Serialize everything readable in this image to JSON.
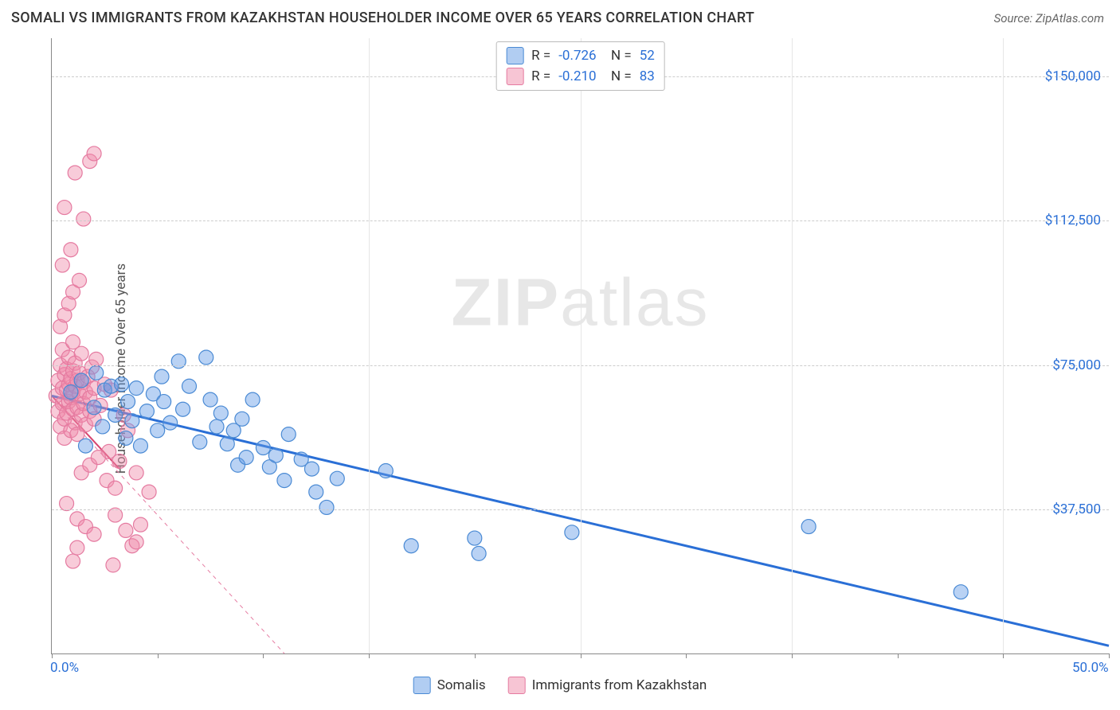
{
  "header": {
    "title": "SOMALI VS IMMIGRANTS FROM KAZAKHSTAN HOUSEHOLDER INCOME OVER 65 YEARS CORRELATION CHART",
    "source": "Source: ZipAtlas.com"
  },
  "chart": {
    "type": "scatter",
    "y_axis_label": "Householder Income Over 65 years",
    "watermark_bold": "ZIP",
    "watermark_rest": "atlas",
    "x_min": 0,
    "x_max": 50,
    "y_min": 0,
    "y_max": 160000,
    "x_ticks": [
      0,
      5,
      10,
      15,
      20,
      25,
      30,
      35,
      40,
      45,
      50
    ],
    "x_tick_labels_show": {
      "0": "0.0%",
      "50": "50.0%"
    },
    "y_gridlines": [
      37500,
      75000,
      112500,
      150000
    ],
    "y_tick_labels": {
      "37500": "$37,500",
      "75000": "$75,000",
      "112500": "$112,500",
      "150000": "$150,000"
    },
    "y_label_color": "#2a6fd6",
    "grid_color": "#cccccc",
    "axis_color": "#888888",
    "marker_radius": 9,
    "marker_opacity": 0.5,
    "series": [
      {
        "id": "somalis",
        "label": "Somalis",
        "color_fill": "rgba(100,155,230,0.45)",
        "color_stroke": "#4a8ad4",
        "R": "-0.726",
        "N": "52",
        "trend": {
          "x1": 0,
          "y1": 67000,
          "x2": 50,
          "y2": 2000,
          "stroke": "#2a6fd6",
          "width": 3,
          "dash": "none"
        },
        "points": [
          [
            0.9,
            68000
          ],
          [
            1.4,
            71000
          ],
          [
            1.6,
            54000
          ],
          [
            2.0,
            64000
          ],
          [
            2.1,
            73000
          ],
          [
            2.4,
            59000
          ],
          [
            2.5,
            68500
          ],
          [
            2.8,
            69500
          ],
          [
            3.0,
            62000
          ],
          [
            3.3,
            70000
          ],
          [
            3.5,
            56000
          ],
          [
            3.6,
            65500
          ],
          [
            3.8,
            60500
          ],
          [
            4.0,
            69000
          ],
          [
            4.2,
            54000
          ],
          [
            4.5,
            63000
          ],
          [
            4.8,
            67500
          ],
          [
            5.0,
            58000
          ],
          [
            5.3,
            65500
          ],
          [
            5.2,
            72000
          ],
          [
            5.6,
            60000
          ],
          [
            6.0,
            76000
          ],
          [
            6.2,
            63500
          ],
          [
            6.5,
            69500
          ],
          [
            7.0,
            55000
          ],
          [
            7.3,
            77000
          ],
          [
            7.5,
            66000
          ],
          [
            7.8,
            59000
          ],
          [
            8.0,
            62500
          ],
          [
            8.3,
            54500
          ],
          [
            8.6,
            58000
          ],
          [
            8.8,
            49000
          ],
          [
            9.0,
            61000
          ],
          [
            9.2,
            51000
          ],
          [
            9.5,
            66000
          ],
          [
            10.0,
            53500
          ],
          [
            10.3,
            48500
          ],
          [
            10.6,
            51500
          ],
          [
            11.0,
            45000
          ],
          [
            11.2,
            57000
          ],
          [
            11.8,
            50500
          ],
          [
            12.3,
            48000
          ],
          [
            12.5,
            42000
          ],
          [
            13.0,
            38000
          ],
          [
            13.5,
            45500
          ],
          [
            15.8,
            47500
          ],
          [
            17.0,
            28000
          ],
          [
            20.0,
            30000
          ],
          [
            20.2,
            26000
          ],
          [
            24.6,
            31500
          ],
          [
            35.8,
            33000
          ],
          [
            43.0,
            16000
          ]
        ]
      },
      {
        "id": "kazakhstan",
        "label": "Immigrants from Kazakhstan",
        "color_fill": "rgba(240,140,170,0.45)",
        "color_stroke": "#e57aa0",
        "R": "-0.210",
        "N": "83",
        "trend": {
          "x1": 0,
          "y1": 66000,
          "x2": 11,
          "y2": 0,
          "stroke": "#e57aa0",
          "width": 1,
          "dash": "5,5"
        },
        "trend_solid": {
          "x1": 0,
          "y1": 67000,
          "x2": 3.2,
          "y2": 48000,
          "stroke": "#d6456f",
          "width": 2
        },
        "points": [
          [
            0.2,
            67000
          ],
          [
            0.3,
            71000
          ],
          [
            0.3,
            63000
          ],
          [
            0.4,
            75000
          ],
          [
            0.4,
            59000
          ],
          [
            0.5,
            69000
          ],
          [
            0.5,
            65000
          ],
          [
            0.5,
            79000
          ],
          [
            0.6,
            61000
          ],
          [
            0.6,
            72500
          ],
          [
            0.6,
            56000
          ],
          [
            0.7,
            68500
          ],
          [
            0.7,
            74000
          ],
          [
            0.7,
            62500
          ],
          [
            0.8,
            70000
          ],
          [
            0.8,
            65500
          ],
          [
            0.8,
            77000
          ],
          [
            0.9,
            58000
          ],
          [
            0.9,
            71500
          ],
          [
            0.9,
            66500
          ],
          [
            1.0,
            63500
          ],
          [
            1.0,
            73500
          ],
          [
            1.0,
            68000
          ],
          [
            1.0,
            81000
          ],
          [
            1.1,
            60000
          ],
          [
            1.1,
            69500
          ],
          [
            1.1,
            75500
          ],
          [
            1.2,
            64000
          ],
          [
            1.2,
            71000
          ],
          [
            1.2,
            57000
          ],
          [
            1.3,
            67500
          ],
          [
            1.3,
            73000
          ],
          [
            1.4,
            62000
          ],
          [
            1.4,
            78000
          ],
          [
            1.5,
            65000
          ],
          [
            1.5,
            70500
          ],
          [
            1.6,
            59500
          ],
          [
            1.6,
            68000
          ],
          [
            1.7,
            72000
          ],
          [
            1.8,
            63000
          ],
          [
            1.8,
            66500
          ],
          [
            1.9,
            74500
          ],
          [
            2.0,
            61000
          ],
          [
            2.0,
            69000
          ],
          [
            2.1,
            76500
          ],
          [
            2.3,
            64500
          ],
          [
            2.5,
            70000
          ],
          [
            2.7,
            52500
          ],
          [
            0.4,
            85000
          ],
          [
            0.6,
            88000
          ],
          [
            0.8,
            91000
          ],
          [
            1.0,
            94000
          ],
          [
            1.3,
            97000
          ],
          [
            0.5,
            101000
          ],
          [
            0.9,
            105000
          ],
          [
            1.5,
            113000
          ],
          [
            1.1,
            125000
          ],
          [
            1.8,
            128000
          ],
          [
            2.0,
            130000
          ],
          [
            0.7,
            39000
          ],
          [
            0.6,
            116000
          ],
          [
            1.2,
            35000
          ],
          [
            1.6,
            33000
          ],
          [
            2.0,
            31000
          ],
          [
            1.4,
            47000
          ],
          [
            1.8,
            49000
          ],
          [
            2.2,
            51000
          ],
          [
            2.6,
            45000
          ],
          [
            3.0,
            43000
          ],
          [
            3.0,
            36000
          ],
          [
            3.2,
            50000
          ],
          [
            3.5,
            32000
          ],
          [
            3.8,
            28000
          ],
          [
            4.0,
            47000
          ],
          [
            4.2,
            33500
          ],
          [
            4.6,
            42000
          ],
          [
            4.0,
            29000
          ],
          [
            1.0,
            24000
          ],
          [
            1.2,
            27500
          ],
          [
            2.9,
            23000
          ],
          [
            3.6,
            58000
          ],
          [
            3.4,
            62000
          ],
          [
            2.8,
            68500
          ]
        ]
      }
    ],
    "legend_bottom": [
      {
        "swatch": "blue",
        "label": "Somalis"
      },
      {
        "swatch": "pink",
        "label": "Immigrants from Kazakhstan"
      }
    ]
  }
}
